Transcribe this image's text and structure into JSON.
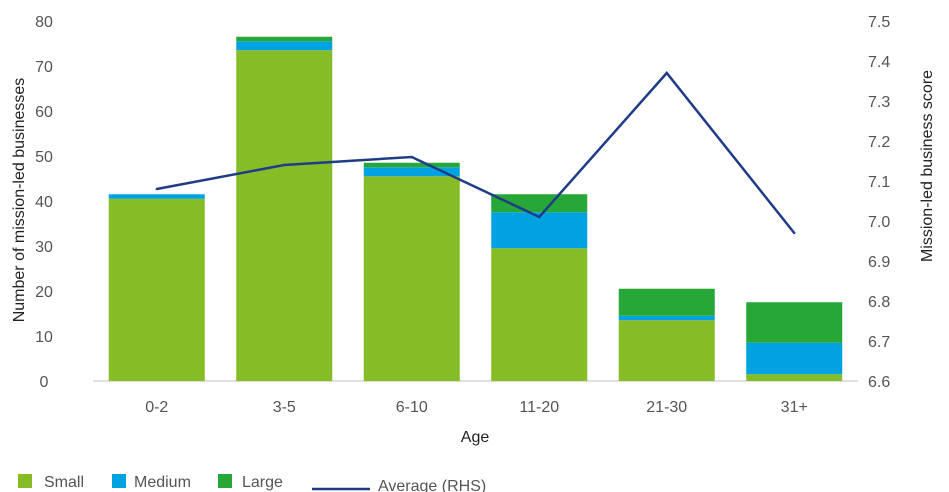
{
  "chart_data": {
    "type": "bar",
    "stacked": true,
    "categories": [
      "0-2",
      "3-5",
      "6-10",
      "11-20",
      "21-30",
      "31+"
    ],
    "series": [
      {
        "name": "Small",
        "color": "#86bc25",
        "values": [
          40.5,
          73.5,
          45.5,
          29.5,
          13.5,
          1.5
        ]
      },
      {
        "name": "Medium",
        "color": "#00a3e0",
        "values": [
          1,
          2,
          2,
          8,
          1,
          7
        ]
      },
      {
        "name": "Large",
        "color": "#26a737",
        "values": [
          0,
          1,
          1,
          4,
          6,
          9
        ]
      }
    ],
    "line_series": {
      "name": "Average (RHS)",
      "color": "#1f3c88",
      "values": [
        7.08,
        7.14,
        7.16,
        7.01,
        7.37,
        6.97
      ]
    },
    "xlabel": "Age",
    "ylabel": "Number of mission-led businesses",
    "ylabel_right": "Mission-led business score",
    "ylim": [
      0,
      80
    ],
    "yticks": [
      "0",
      "10",
      "20",
      "30",
      "40",
      "50",
      "60",
      "70",
      "80"
    ],
    "ylim_right": [
      6.6,
      7.5
    ],
    "yticks_right": [
      "6.6",
      "6.7",
      "6.8",
      "6.9",
      "7.0",
      "7.1",
      "7.2",
      "7.3",
      "7.4",
      "7.5"
    ],
    "grid": false,
    "legend_position": "bottom-left"
  }
}
